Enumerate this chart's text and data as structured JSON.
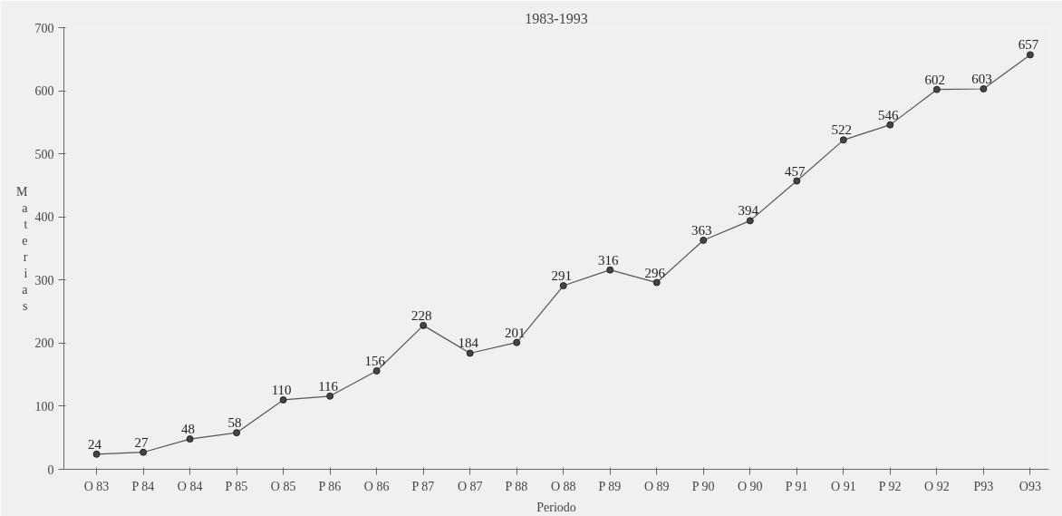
{
  "chart_data": {
    "type": "line",
    "title": "1983-1993",
    "xlabel": "Periodo",
    "ylabel": "Materias",
    "categories": [
      "O 83",
      "P 84",
      "O 84",
      "P 85",
      "O 85",
      "P 86",
      "O 86",
      "P 87",
      "O 87",
      "P 88",
      "O 88",
      "P 89",
      "O 89",
      "P 90",
      "O 90",
      "P 91",
      "O 91",
      "P 92",
      "O 92",
      "P93",
      "O93"
    ],
    "series": [
      {
        "color": "#555555",
        "values": [
          24,
          27,
          48,
          58,
          110,
          116,
          156,
          228,
          184,
          201,
          291,
          316,
          296,
          363,
          394,
          457,
          522,
          546,
          602,
          603,
          657
        ]
      }
    ],
    "ylim": [
      0,
      700
    ],
    "yticks": [
      0,
      100,
      200,
      300,
      400,
      500,
      600,
      700
    ],
    "data_labels": true,
    "marker": "circle",
    "grid": false
  }
}
